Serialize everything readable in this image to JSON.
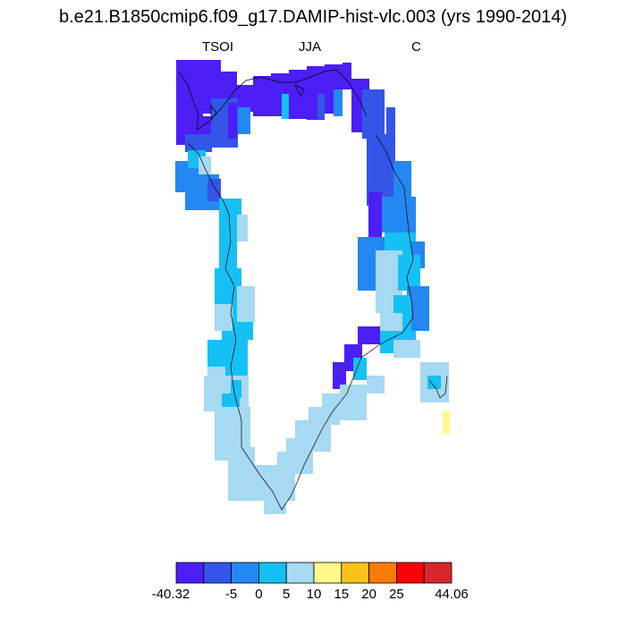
{
  "title": "b.e21.B1850cmip6.f09_g17.DAMIP-hist-vlc.003 (yrs 1990-2014)",
  "subtitles": {
    "left": "TSOI",
    "center": "JJA",
    "right": "C"
  },
  "map": {
    "region": "Greenland",
    "background_fill": "#ffffff",
    "coastline_color": "#000000",
    "palette_index_meaning": "index into colorbar.colors"
  },
  "colorbar": {
    "colors": [
      "#4b1ff5",
      "#3356e8",
      "#2388f2",
      "#15c0f5",
      "#a6d9f2",
      "#fef98a",
      "#fdc21a",
      "#fa7b0a",
      "#f80406",
      "#d6282e"
    ],
    "labels": [
      "-40.32",
      "-5",
      "0",
      "5",
      "10",
      "15",
      "20",
      "25",
      "44.06"
    ]
  }
}
